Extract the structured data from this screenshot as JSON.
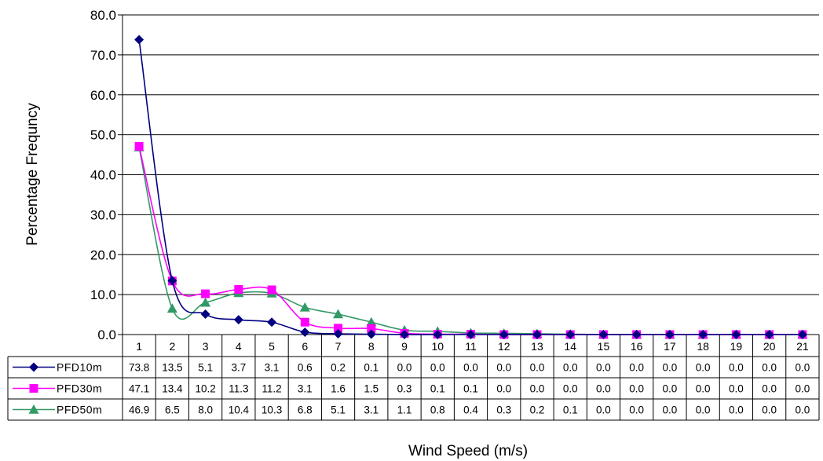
{
  "chart_data": {
    "type": "line",
    "title": "",
    "xlabel": "Wind Speed (m/s)",
    "ylabel": "Percentage Frequncy",
    "ylim": [
      0,
      80
    ],
    "yticks": [
      "0.0",
      "10.0",
      "20.0",
      "30.0",
      "40.0",
      "50.0",
      "60.0",
      "70.0",
      "80.0"
    ],
    "grid": true,
    "categories": [
      "1",
      "2",
      "3",
      "4",
      "5",
      "6",
      "7",
      "8",
      "9",
      "10",
      "11",
      "12",
      "13",
      "14",
      "15",
      "16",
      "17",
      "18",
      "19",
      "20",
      "21"
    ],
    "series": [
      {
        "name": "PFD10m",
        "color": "#000080",
        "marker": "diamond",
        "values": [
          73.8,
          13.5,
          5.1,
          3.7,
          3.1,
          0.6,
          0.2,
          0.1,
          0.0,
          0.0,
          0.0,
          0.0,
          0.0,
          0.0,
          0.0,
          0.0,
          0.0,
          0.0,
          0.0,
          0.0,
          0.0
        ],
        "labels": [
          "73.8",
          "13.5",
          "5.1",
          "3.7",
          "3.1",
          "0.6",
          "0.2",
          "0.1",
          "0.0",
          "0.0",
          "0.0",
          "0.0",
          "0.0",
          "0.0",
          "0.0",
          "0.0",
          "0.0",
          "0.0",
          "0.0",
          "0.0",
          "0.0"
        ]
      },
      {
        "name": "PFD30m",
        "color": "#FF00FF",
        "marker": "square",
        "values": [
          47.1,
          13.4,
          10.2,
          11.3,
          11.2,
          3.1,
          1.6,
          1.5,
          0.3,
          0.1,
          0.1,
          0.0,
          0.0,
          0.0,
          0.0,
          0.0,
          0.0,
          0.0,
          0.0,
          0.0,
          0.0
        ],
        "labels": [
          "47.1",
          "13.4",
          "10.2",
          "11.3",
          "11.2",
          "3.1",
          "1.6",
          "1.5",
          "0.3",
          "0.1",
          "0.1",
          "0.0",
          "0.0",
          "0.0",
          "0.0",
          "0.0",
          "0.0",
          "0.0",
          "0.0",
          "0.0",
          "0.0"
        ]
      },
      {
        "name": "PFD50m",
        "color": "#339966",
        "marker": "triangle",
        "values": [
          46.9,
          6.5,
          8.0,
          10.4,
          10.3,
          6.8,
          5.1,
          3.1,
          1.1,
          0.8,
          0.4,
          0.3,
          0.2,
          0.1,
          0.0,
          0.0,
          0.0,
          0.0,
          0.0,
          0.0,
          0.0
        ],
        "labels": [
          "46.9",
          "6.5",
          "8.0",
          "10.4",
          "10.3",
          "6.8",
          "5.1",
          "3.1",
          "1.1",
          "0.8",
          "0.4",
          "0.3",
          "0.2",
          "0.1",
          "0.0",
          "0.0",
          "0.0",
          "0.0",
          "0.0",
          "0.0",
          "0.0"
        ]
      }
    ]
  }
}
